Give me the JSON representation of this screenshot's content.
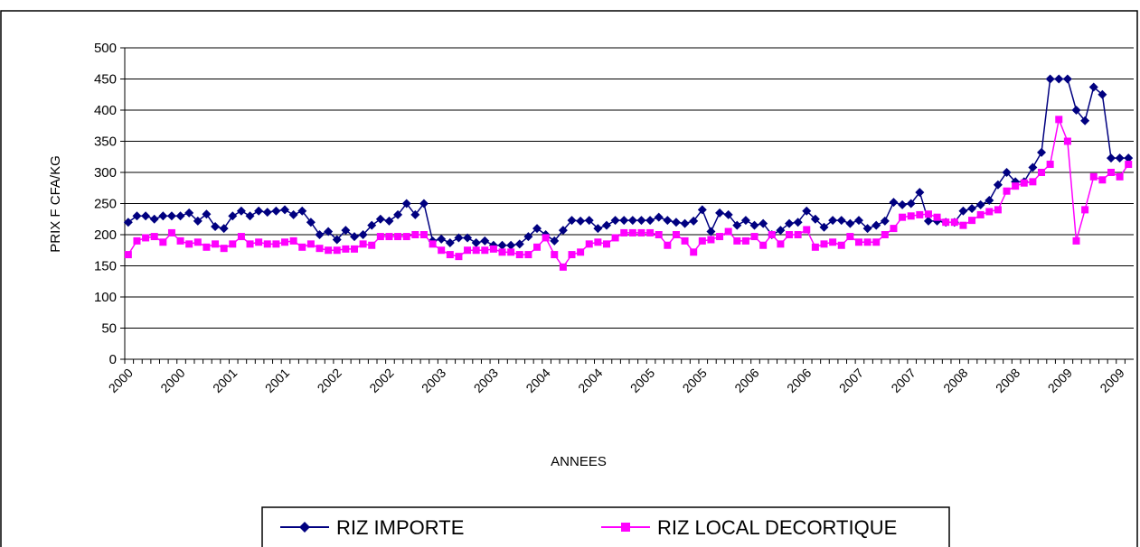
{
  "chart_data": {
    "type": "line",
    "xlabel": "ANNEES",
    "ylabel": "PRIX F CFA/KG",
    "categories": [
      "2000",
      null,
      null,
      null,
      null,
      null,
      "2000",
      null,
      null,
      null,
      null,
      null,
      "2001",
      null,
      null,
      null,
      null,
      null,
      "2001",
      null,
      null,
      null,
      null,
      null,
      "2002",
      null,
      null,
      null,
      null,
      null,
      "2002",
      null,
      null,
      null,
      null,
      null,
      "2003",
      null,
      null,
      null,
      null,
      null,
      "2003",
      null,
      null,
      null,
      null,
      null,
      "2004",
      null,
      null,
      null,
      null,
      null,
      "2004",
      null,
      null,
      null,
      null,
      null,
      "2005",
      null,
      null,
      null,
      null,
      null,
      "2005",
      null,
      null,
      null,
      null,
      null,
      "2006",
      null,
      null,
      null,
      null,
      null,
      "2006",
      null,
      null,
      null,
      null,
      null,
      "2007",
      null,
      null,
      null,
      null,
      null,
      "2007",
      null,
      null,
      null,
      null,
      null,
      "2008",
      null,
      null,
      null,
      null,
      null,
      "2008",
      null,
      null,
      null,
      null,
      null,
      "2009",
      null,
      null,
      null,
      null,
      null,
      "2009",
      null
    ],
    "series": [
      {
        "name": "RIZ IMPORTE",
        "color": "#000080",
        "marker": "diamond",
        "values": [
          220,
          230,
          230,
          225,
          230,
          230,
          230,
          235,
          222,
          233,
          213,
          210,
          230,
          238,
          230,
          238,
          236,
          238,
          240,
          232,
          238,
          220,
          200,
          205,
          192,
          207,
          197,
          200,
          215,
          225,
          222,
          232,
          250,
          232,
          250,
          190,
          193,
          187,
          195,
          195,
          187,
          190,
          183,
          183,
          183,
          185,
          197,
          210,
          200,
          190,
          207,
          223,
          222,
          223,
          210,
          215,
          223,
          223,
          223,
          223,
          223,
          228,
          223,
          220,
          218,
          222,
          240,
          205,
          235,
          232,
          215,
          223,
          215,
          218,
          200,
          207,
          218,
          220,
          238,
          225,
          212,
          223,
          223,
          218,
          223,
          210,
          215,
          222,
          252,
          248,
          250,
          268,
          222,
          222,
          220,
          220,
          238,
          242,
          248,
          255,
          280,
          300,
          285,
          285,
          308,
          332,
          450,
          450,
          450,
          400,
          383,
          437,
          425,
          323,
          323,
          323
        ]
      },
      {
        "name": "RIZ LOCAL DECORTIQUE",
        "color": "#ff00ff",
        "marker": "square",
        "values": [
          168,
          190,
          195,
          197,
          188,
          203,
          190,
          185,
          188,
          180,
          185,
          178,
          185,
          197,
          185,
          188,
          185,
          185,
          188,
          190,
          180,
          185,
          178,
          175,
          175,
          177,
          177,
          185,
          183,
          197,
          197,
          197,
          197,
          200,
          200,
          185,
          175,
          168,
          165,
          175,
          175,
          175,
          177,
          172,
          172,
          168,
          168,
          180,
          195,
          168,
          148,
          168,
          172,
          185,
          188,
          185,
          195,
          203,
          203,
          203,
          203,
          200,
          183,
          200,
          190,
          172,
          190,
          192,
          197,
          205,
          190,
          190,
          197,
          183,
          200,
          185,
          200,
          200,
          208,
          180,
          185,
          188,
          183,
          197,
          188,
          188,
          188,
          200,
          210,
          228,
          230,
          232,
          233,
          228,
          220,
          220,
          215,
          223,
          232,
          237,
          240,
          270,
          278,
          283,
          285,
          300,
          313,
          385,
          350,
          190,
          240,
          293,
          288,
          300,
          293,
          313
        ]
      }
    ],
    "ylim": [
      0,
      500
    ],
    "yticks": [
      0,
      50,
      100,
      150,
      200,
      250,
      300,
      350,
      400,
      450,
      500
    ],
    "grid": true,
    "legend": "bottom"
  }
}
